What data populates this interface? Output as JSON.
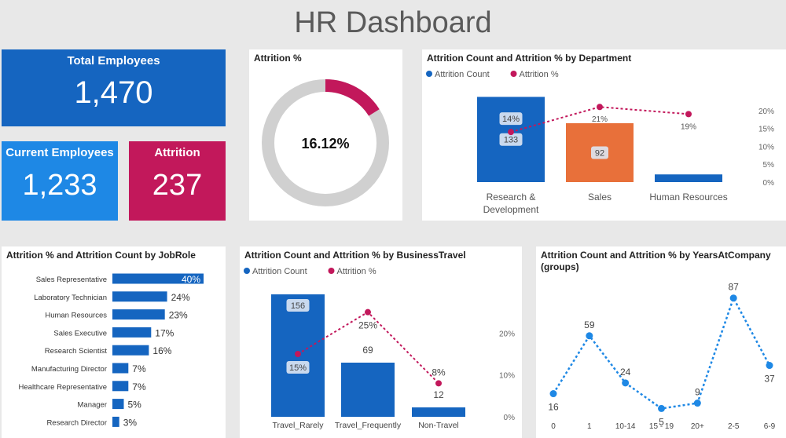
{
  "dashboard_title": "HR Dashboard",
  "kpis": {
    "total": {
      "label": "Total Employees",
      "value": "1,470"
    },
    "current": {
      "label": "Current Employees",
      "value": "1,233"
    },
    "attrition": {
      "label": "Attrition",
      "value": "237"
    }
  },
  "colors": {
    "blue": "#1565c0",
    "bright_blue": "#1e88e5",
    "crimson": "#c2185b",
    "orange": "#e8703a",
    "dots": "#1e88e5"
  },
  "chart_data": [
    {
      "id": "donut",
      "type": "pie",
      "title": "Attrition %",
      "value_pct": 16.12,
      "center_label": "16.12%"
    },
    {
      "id": "dept",
      "type": "bar",
      "title": "Attrition Count and Attrition % by Department",
      "legend": [
        "Attrition Count",
        "Attrition %"
      ],
      "categories": [
        "Research & Development",
        "Sales",
        "Human Resources"
      ],
      "category_lines": [
        [
          "Research &",
          "Development"
        ],
        [
          "Sales"
        ],
        [
          "Human Resources"
        ]
      ],
      "series": [
        {
          "name": "Attrition Count",
          "values": [
            133,
            92,
            12
          ],
          "labels": [
            "133",
            "92",
            ""
          ]
        },
        {
          "name": "Attrition %",
          "values": [
            14,
            21,
            19
          ],
          "labels": [
            "14%",
            "21%",
            "19%"
          ]
        }
      ],
      "y2_ticks": [
        "20%",
        "15%",
        "10%",
        "5%",
        "0%"
      ],
      "y2lim": [
        0,
        25
      ]
    },
    {
      "id": "jobrole",
      "type": "bar",
      "orientation": "horizontal",
      "title": "Attrition % and Attrition Count by JobRole",
      "categories": [
        "Sales Representative",
        "Laboratory Technician",
        "Human Resources",
        "Sales Executive",
        "Research Scientist",
        "Manufacturing Director",
        "Healthcare Representative",
        "Manager",
        "Research Director"
      ],
      "values": [
        40,
        24,
        23,
        17,
        16,
        7,
        7,
        5,
        3
      ],
      "labels": [
        "40%",
        "24%",
        "23%",
        "17%",
        "16%",
        "7%",
        "7%",
        "5%",
        "3%"
      ],
      "xlim": [
        0,
        40
      ]
    },
    {
      "id": "travel",
      "type": "bar",
      "title": "Attrition Count and Attrition % by BusinessTravel",
      "legend": [
        "Attrition Count",
        "Attrition %"
      ],
      "categories": [
        "Travel_Rarely",
        "Travel_Frequently",
        "Non-Travel"
      ],
      "series": [
        {
          "name": "Attrition Count",
          "values": [
            156,
            69,
            12
          ],
          "labels": [
            "156",
            "69",
            "12"
          ]
        },
        {
          "name": "Attrition %",
          "values": [
            15,
            25,
            8
          ],
          "labels": [
            "15%",
            "25%",
            "8%"
          ]
        }
      ],
      "y2_ticks": [
        "20%",
        "10%",
        "0%"
      ],
      "y2lim": [
        0,
        30
      ]
    },
    {
      "id": "years",
      "type": "line",
      "title": "Attrition Count and Attrition % by YearsAtCompany (groups)",
      "title_lines": [
        "Attrition Count and Attrition % by YearsAtCompany",
        "(groups)"
      ],
      "categories": [
        "0",
        "1",
        "10-14",
        "15 - 19",
        "20+",
        "2-5",
        "6-9"
      ],
      "values": [
        16,
        59,
        24,
        5,
        9,
        87,
        37
      ],
      "labels": [
        "16",
        "59",
        "24",
        "5",
        "9",
        "87",
        "37"
      ],
      "ylim": [
        0,
        95
      ]
    }
  ]
}
